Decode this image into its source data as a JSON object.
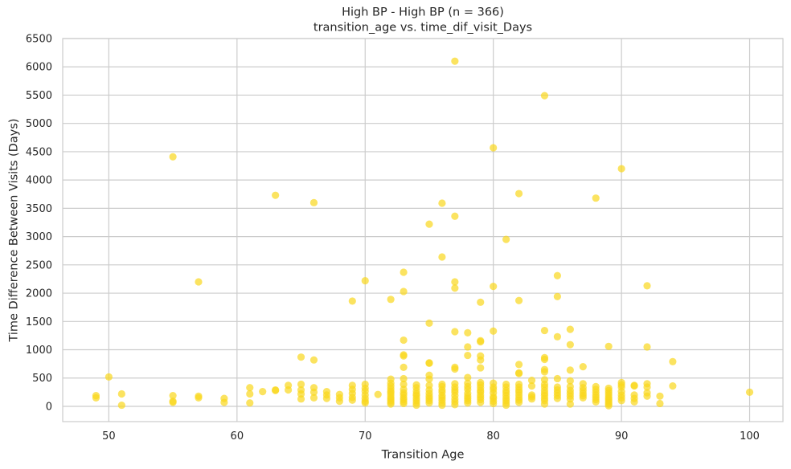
{
  "chart_data": {
    "type": "scatter",
    "title": "High BP - High BP (n = 366)",
    "subtitle": "transition_age vs. time_dif_visit_Days",
    "xlabel": "Transition Age",
    "ylabel": "Time Difference Between Visits (Days)",
    "xlim": [
      46.4,
      102.6
    ],
    "ylim": [
      -270,
      6500
    ],
    "xticks": [
      50,
      60,
      70,
      80,
      90,
      100
    ],
    "yticks": [
      0,
      500,
      1000,
      1500,
      2000,
      2500,
      3000,
      3500,
      4000,
      4500,
      5000,
      5500,
      6000,
      6500
    ],
    "grid": true,
    "series": [
      {
        "color": "#f9d71c",
        "alpha": 0.7,
        "points": [
          [
            49,
            190
          ],
          [
            49,
            150
          ],
          [
            50,
            520
          ],
          [
            51,
            220
          ],
          [
            51,
            20
          ],
          [
            55,
            4410
          ],
          [
            55,
            190
          ],
          [
            55,
            90
          ],
          [
            55,
            70
          ],
          [
            57,
            2200
          ],
          [
            57,
            180
          ],
          [
            57,
            150
          ],
          [
            59,
            140
          ],
          [
            59,
            70
          ],
          [
            61,
            330
          ],
          [
            61,
            220
          ],
          [
            61,
            60
          ],
          [
            62,
            260
          ],
          [
            63,
            3730
          ],
          [
            63,
            290
          ],
          [
            63,
            280
          ],
          [
            64,
            370
          ],
          [
            64,
            290
          ],
          [
            65,
            870
          ],
          [
            65,
            390
          ],
          [
            65,
            290
          ],
          [
            65,
            220
          ],
          [
            65,
            130
          ],
          [
            66,
            3600
          ],
          [
            66,
            820
          ],
          [
            66,
            330
          ],
          [
            66,
            250
          ],
          [
            66,
            150
          ],
          [
            67,
            260
          ],
          [
            67,
            200
          ],
          [
            67,
            140
          ],
          [
            68,
            210
          ],
          [
            68,
            150
          ],
          [
            68,
            90
          ],
          [
            69,
            1860
          ],
          [
            69,
            370
          ],
          [
            69,
            300
          ],
          [
            69,
            230
          ],
          [
            69,
            160
          ],
          [
            69,
            110
          ],
          [
            70,
            2220
          ],
          [
            70,
            390
          ],
          [
            70,
            320
          ],
          [
            70,
            270
          ],
          [
            70,
            200
          ],
          [
            70,
            140
          ],
          [
            70,
            90
          ],
          [
            70,
            60
          ],
          [
            71,
            210
          ],
          [
            72,
            1890
          ],
          [
            72,
            480
          ],
          [
            72,
            410
          ],
          [
            72,
            360
          ],
          [
            72,
            310
          ],
          [
            72,
            270
          ],
          [
            72,
            240
          ],
          [
            72,
            200
          ],
          [
            72,
            160
          ],
          [
            72,
            130
          ],
          [
            72,
            100
          ],
          [
            72,
            70
          ],
          [
            72,
            40
          ],
          [
            73,
            2370
          ],
          [
            73,
            2030
          ],
          [
            73,
            1170
          ],
          [
            73,
            910
          ],
          [
            73,
            890
          ],
          [
            73,
            690
          ],
          [
            73,
            490
          ],
          [
            73,
            390
          ],
          [
            73,
            300
          ],
          [
            73,
            240
          ],
          [
            73,
            200
          ],
          [
            73,
            150
          ],
          [
            73,
            120
          ],
          [
            73,
            80
          ],
          [
            73,
            50
          ],
          [
            74,
            380
          ],
          [
            74,
            330
          ],
          [
            74,
            270
          ],
          [
            74,
            220
          ],
          [
            74,
            190
          ],
          [
            74,
            140
          ],
          [
            74,
            100
          ],
          [
            74,
            60
          ],
          [
            74,
            20
          ],
          [
            75,
            3220
          ],
          [
            75,
            1470
          ],
          [
            75,
            770
          ],
          [
            75,
            760
          ],
          [
            75,
            550
          ],
          [
            75,
            480
          ],
          [
            75,
            370
          ],
          [
            75,
            290
          ],
          [
            75,
            230
          ],
          [
            75,
            180
          ],
          [
            75,
            140
          ],
          [
            75,
            100
          ],
          [
            75,
            60
          ],
          [
            76,
            3590
          ],
          [
            76,
            2640
          ],
          [
            76,
            390
          ],
          [
            76,
            350
          ],
          [
            76,
            290
          ],
          [
            76,
            250
          ],
          [
            76,
            190
          ],
          [
            76,
            150
          ],
          [
            76,
            110
          ],
          [
            76,
            60
          ],
          [
            76,
            20
          ],
          [
            77,
            6100
          ],
          [
            77,
            3360
          ],
          [
            77,
            2200
          ],
          [
            77,
            2090
          ],
          [
            77,
            1320
          ],
          [
            77,
            690
          ],
          [
            77,
            660
          ],
          [
            77,
            400
          ],
          [
            77,
            340
          ],
          [
            77,
            290
          ],
          [
            77,
            250
          ],
          [
            77,
            190
          ],
          [
            77,
            130
          ],
          [
            77,
            80
          ],
          [
            77,
            30
          ],
          [
            78,
            1300
          ],
          [
            78,
            1050
          ],
          [
            78,
            900
          ],
          [
            78,
            510
          ],
          [
            78,
            410
          ],
          [
            78,
            350
          ],
          [
            78,
            300
          ],
          [
            78,
            230
          ],
          [
            78,
            180
          ],
          [
            78,
            140
          ],
          [
            78,
            100
          ],
          [
            78,
            60
          ],
          [
            79,
            1840
          ],
          [
            79,
            1160
          ],
          [
            79,
            1140
          ],
          [
            79,
            890
          ],
          [
            79,
            820
          ],
          [
            79,
            680
          ],
          [
            79,
            420
          ],
          [
            79,
            380
          ],
          [
            79,
            330
          ],
          [
            79,
            280
          ],
          [
            79,
            250
          ],
          [
            79,
            200
          ],
          [
            79,
            160
          ],
          [
            79,
            120
          ],
          [
            79,
            70
          ],
          [
            80,
            4570
          ],
          [
            80,
            2120
          ],
          [
            80,
            1330
          ],
          [
            80,
            410
          ],
          [
            80,
            340
          ],
          [
            80,
            300
          ],
          [
            80,
            240
          ],
          [
            80,
            170
          ],
          [
            80,
            140
          ],
          [
            80,
            90
          ],
          [
            80,
            50
          ],
          [
            81,
            2950
          ],
          [
            81,
            390
          ],
          [
            81,
            340
          ],
          [
            81,
            280
          ],
          [
            81,
            240
          ],
          [
            81,
            190
          ],
          [
            81,
            140
          ],
          [
            81,
            100
          ],
          [
            81,
            60
          ],
          [
            81,
            20
          ],
          [
            82,
            3760
          ],
          [
            82,
            1870
          ],
          [
            82,
            740
          ],
          [
            82,
            590
          ],
          [
            82,
            580
          ],
          [
            82,
            390
          ],
          [
            82,
            340
          ],
          [
            82,
            290
          ],
          [
            82,
            250
          ],
          [
            82,
            200
          ],
          [
            82,
            150
          ],
          [
            82,
            110
          ],
          [
            82,
            70
          ],
          [
            83,
            460
          ],
          [
            83,
            360
          ],
          [
            83,
            200
          ],
          [
            83,
            170
          ],
          [
            83,
            130
          ],
          [
            84,
            5490
          ],
          [
            84,
            1340
          ],
          [
            84,
            860
          ],
          [
            84,
            830
          ],
          [
            84,
            650
          ],
          [
            84,
            610
          ],
          [
            84,
            470
          ],
          [
            84,
            390
          ],
          [
            84,
            340
          ],
          [
            84,
            280
          ],
          [
            84,
            230
          ],
          [
            84,
            190
          ],
          [
            84,
            140
          ],
          [
            84,
            100
          ],
          [
            84,
            40
          ],
          [
            85,
            2310
          ],
          [
            85,
            1940
          ],
          [
            85,
            1230
          ],
          [
            85,
            490
          ],
          [
            85,
            340
          ],
          [
            85,
            290
          ],
          [
            85,
            240
          ],
          [
            85,
            190
          ],
          [
            85,
            140
          ],
          [
            86,
            1360
          ],
          [
            86,
            1090
          ],
          [
            86,
            640
          ],
          [
            86,
            450
          ],
          [
            86,
            350
          ],
          [
            86,
            280
          ],
          [
            86,
            230
          ],
          [
            86,
            180
          ],
          [
            86,
            130
          ],
          [
            86,
            40
          ],
          [
            87,
            700
          ],
          [
            87,
            400
          ],
          [
            87,
            330
          ],
          [
            87,
            280
          ],
          [
            87,
            230
          ],
          [
            87,
            190
          ],
          [
            87,
            150
          ],
          [
            88,
            3680
          ],
          [
            88,
            350
          ],
          [
            88,
            300
          ],
          [
            88,
            250
          ],
          [
            88,
            200
          ],
          [
            88,
            160
          ],
          [
            88,
            120
          ],
          [
            88,
            80
          ],
          [
            89,
            1060
          ],
          [
            89,
            320
          ],
          [
            89,
            280
          ],
          [
            89,
            240
          ],
          [
            89,
            200
          ],
          [
            89,
            160
          ],
          [
            89,
            130
          ],
          [
            89,
            100
          ],
          [
            89,
            70
          ],
          [
            89,
            40
          ],
          [
            89,
            10
          ],
          [
            90,
            4200
          ],
          [
            90,
            420
          ],
          [
            90,
            380
          ],
          [
            90,
            340
          ],
          [
            90,
            260
          ],
          [
            90,
            200
          ],
          [
            90,
            150
          ],
          [
            90,
            100
          ],
          [
            91,
            370
          ],
          [
            91,
            360
          ],
          [
            91,
            200
          ],
          [
            91,
            140
          ],
          [
            91,
            80
          ],
          [
            92,
            2130
          ],
          [
            92,
            1050
          ],
          [
            92,
            400
          ],
          [
            92,
            340
          ],
          [
            92,
            240
          ],
          [
            92,
            180
          ],
          [
            93,
            180
          ],
          [
            93,
            50
          ],
          [
            94,
            790
          ],
          [
            94,
            360
          ],
          [
            100,
            250
          ]
        ]
      }
    ]
  }
}
